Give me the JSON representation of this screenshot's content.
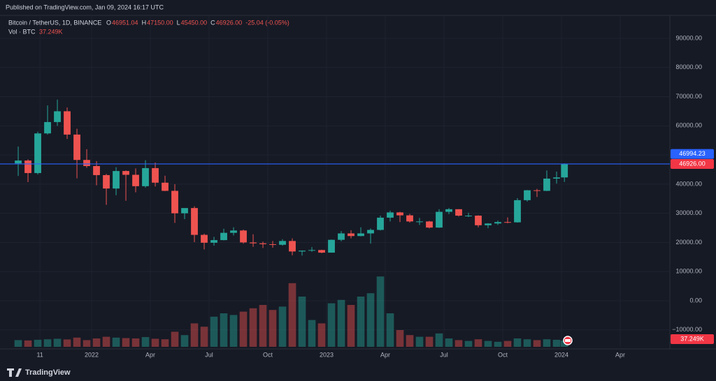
{
  "header": {
    "published": "Published on TradingView.com, Jan 09, 2024 16:17 UTC",
    "brand": "TradingView"
  },
  "chart_data": {
    "type": "candlestick",
    "title": "Bitcoin / TetherUS, 1D, BINANCE",
    "ohlc_legend": [
      {
        "label": "O",
        "value": "46951.04"
      },
      {
        "label": "H",
        "value": "47150.00"
      },
      {
        "label": "L",
        "value": "45450.00"
      },
      {
        "label": "C",
        "value": "46926.00"
      }
    ],
    "change": "-25.04 (-0.05%)",
    "x": [
      -3.75,
      -3.25,
      -2.75,
      -2.25,
      -1.75,
      -1.25,
      -0.75,
      -0.25,
      0.25,
      0.75,
      1.25,
      1.75,
      2.25,
      2.75,
      3.25,
      3.75,
      4.25,
      4.75,
      5.25,
      5.75,
      6.25,
      6.75,
      7.25,
      7.75,
      8.25,
      8.75,
      9.25,
      9.75,
      10.25,
      10.75,
      11.25,
      11.75,
      12.25,
      12.75,
      13.25,
      13.75,
      14.25,
      14.75,
      15.25,
      15.75,
      16.25,
      16.75,
      17.25,
      17.75,
      18.25,
      18.75,
      19.25,
      19.75,
      20.25,
      20.75,
      21.25,
      21.75,
      22.25,
      22.75,
      23.25,
      23.75,
      24.15
    ],
    "open": [
      47100,
      48100,
      43800,
      57400,
      61300,
      65000,
      57000,
      48300,
      46200,
      43100,
      38500,
      44500,
      43200,
      39300,
      45500,
      40500,
      37700,
      30000,
      31800,
      22600,
      19900,
      20800,
      23300,
      24100,
      20000,
      19700,
      19400,
      19200,
      20500,
      16900,
      17200,
      17400,
      16500,
      20900,
      23100,
      22200,
      23100,
      24300,
      28500,
      30300,
      29300,
      27200,
      27200,
      25100,
      30500,
      31400,
      29200,
      29200,
      25900,
      26500,
      27000,
      26900,
      34500,
      37900,
      37700,
      41900,
      42300
    ],
    "high": [
      52900,
      48500,
      58000,
      67000,
      69000,
      66300,
      59000,
      52000,
      47900,
      43500,
      45800,
      44700,
      45400,
      48200,
      47400,
      42900,
      40000,
      31400,
      32400,
      23000,
      21900,
      24700,
      25200,
      24400,
      22800,
      20300,
      20500,
      21100,
      21400,
      17200,
      18400,
      17500,
      21000,
      23900,
      24200,
      25200,
      24800,
      29200,
      30900,
      30500,
      29800,
      28400,
      27400,
      31400,
      31800,
      31400,
      30200,
      29300,
      26600,
      27500,
      28600,
      35200,
      38000,
      38400,
      44700,
      44300,
      47150
    ],
    "low": [
      42800,
      40700,
      43300,
      57000,
      60000,
      55500,
      42000,
      45600,
      39600,
      32900,
      36200,
      34300,
      37200,
      38800,
      39200,
      37600,
      26700,
      28000,
      20100,
      17600,
      18900,
      20700,
      22400,
      19600,
      18500,
      18100,
      18200,
      18900,
      15600,
      15500,
      16800,
      16300,
      16500,
      20400,
      21400,
      22100,
      19600,
      24100,
      27200,
      27000,
      26800,
      26000,
      24800,
      25000,
      29700,
      28900,
      28700,
      25200,
      24900,
      26000,
      26600,
      26800,
      34000,
      35600,
      37600,
      40200,
      40750
    ],
    "close": [
      48100,
      43800,
      57400,
      61300,
      65000,
      57000,
      48300,
      46200,
      43100,
      38500,
      44500,
      43200,
      39300,
      45500,
      40500,
      37700,
      30000,
      31800,
      22600,
      19900,
      20800,
      23300,
      24100,
      20000,
      19700,
      19400,
      19200,
      20500,
      16900,
      17200,
      17400,
      16500,
      20900,
      23100,
      22200,
      23100,
      24300,
      28500,
      30300,
      29300,
      27200,
      27200,
      25100,
      30500,
      31400,
      29200,
      29200,
      25900,
      26500,
      27000,
      26900,
      34500,
      37900,
      37700,
      41900,
      42300,
      46926
    ],
    "up_color": "#26a69a",
    "down_color": "#ef5350",
    "volume": {
      "name": "Vol · BTC",
      "values": [
        40000,
        38000,
        42000,
        45000,
        48000,
        44000,
        55000,
        40000,
        50000,
        60000,
        55000,
        52000,
        50000,
        58000,
        48000,
        45000,
        90000,
        70000,
        140000,
        120000,
        180000,
        200000,
        190000,
        210000,
        230000,
        250000,
        220000,
        240000,
        380000,
        300000,
        160000,
        140000,
        260000,
        280000,
        250000,
        300000,
        320000,
        420000,
        200000,
        100000,
        70000,
        60000,
        60000,
        80000,
        50000,
        40000,
        35000,
        45000,
        35000,
        30000,
        35000,
        50000,
        45000,
        40000,
        45000,
        42000,
        37249
      ],
      "ylim": [
        0,
        500000
      ]
    },
    "volume_tag": {
      "value": 37249,
      "label": "37.249K"
    },
    "price_line": 46926,
    "price_tags": [
      {
        "value": 46926,
        "label": "46926.00",
        "color": "#f23645"
      },
      {
        "value": 46994.23,
        "label": "46994.23",
        "color": "#2962ff"
      }
    ],
    "xlim": [
      -4.68,
      29.25
    ],
    "xticks": [
      {
        "value": -2.64,
        "label": "11"
      },
      {
        "value": 0,
        "label": "2022"
      },
      {
        "value": 3,
        "label": "Apr"
      },
      {
        "value": 6,
        "label": "Jul"
      },
      {
        "value": 9,
        "label": "Oct"
      },
      {
        "value": 12,
        "label": "2023"
      },
      {
        "value": 15,
        "label": "Apr"
      },
      {
        "value": 18,
        "label": "Jul"
      },
      {
        "value": 21,
        "label": "Oct"
      },
      {
        "value": 24,
        "label": "2024"
      },
      {
        "value": 27,
        "label": "Apr"
      }
    ],
    "ylim": [
      -15800,
      97900
    ],
    "yticks": [
      {
        "value": -10000,
        "label": "−10000.00"
      },
      {
        "value": 0,
        "label": "0.00"
      },
      {
        "value": 10000,
        "label": "10000.00"
      },
      {
        "value": 20000,
        "label": "20000.00"
      },
      {
        "value": 30000,
        "label": "30000.00"
      },
      {
        "value": 40000,
        "label": "40000.00"
      },
      {
        "value": 50000,
        "label": "50000.00"
      },
      {
        "value": 60000,
        "label": "60000.00"
      },
      {
        "value": 70000,
        "label": "70000.00"
      },
      {
        "value": 80000,
        "label": "80000.00"
      },
      {
        "value": 90000,
        "label": "90000.00"
      }
    ],
    "grid": true
  }
}
